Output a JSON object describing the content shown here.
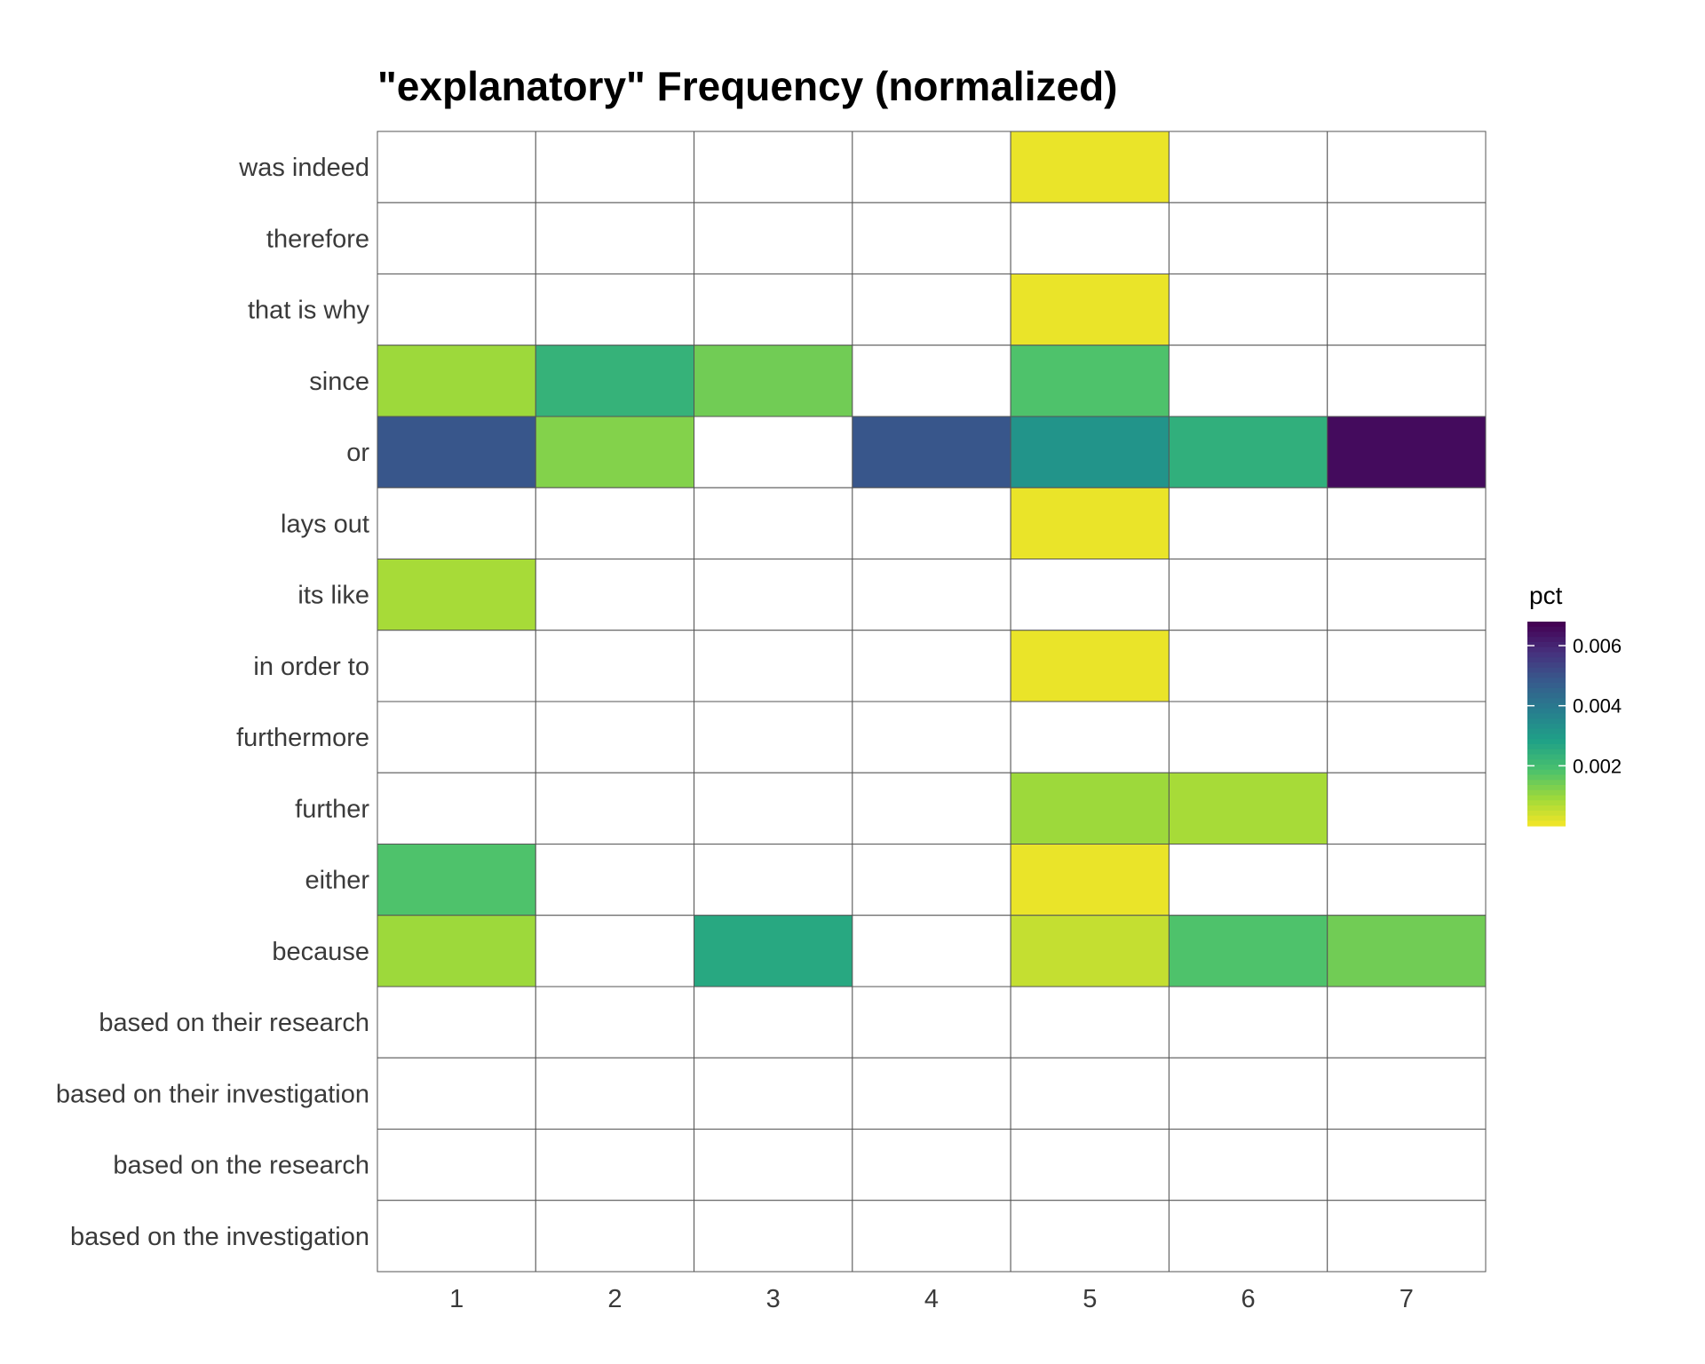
{
  "chart_data": {
    "type": "heatmap",
    "title": "\"explanatory\" Frequency (normalized)",
    "x_categories": [
      "1",
      "2",
      "3",
      "4",
      "5",
      "6",
      "7"
    ],
    "y_categories": [
      "was indeed",
      "therefore",
      "that is why",
      "since",
      "or",
      "lays out",
      "its like",
      "in order to",
      "furthermore",
      "further",
      "either",
      "because",
      "based on their research",
      "based on their investigation",
      "based on the research",
      "based on the investigation"
    ],
    "values": [
      [
        null,
        null,
        null,
        null,
        0.0002,
        null,
        null
      ],
      [
        null,
        null,
        null,
        null,
        null,
        null,
        null
      ],
      [
        null,
        null,
        null,
        null,
        0.0002,
        null,
        null
      ],
      [
        0.001,
        0.0024,
        0.0015,
        null,
        0.0019,
        null,
        null
      ],
      [
        0.005,
        0.0013,
        null,
        0.005,
        0.0033,
        0.0025,
        0.0066
      ],
      [
        null,
        null,
        null,
        null,
        0.0002,
        null,
        null
      ],
      [
        0.0009,
        null,
        null,
        null,
        null,
        null,
        null
      ],
      [
        null,
        null,
        null,
        null,
        0.0002,
        null,
        null
      ],
      [
        null,
        null,
        null,
        null,
        null,
        null,
        null
      ],
      [
        null,
        null,
        null,
        null,
        0.001,
        0.0009,
        null
      ],
      [
        0.0019,
        null,
        null,
        null,
        0.0002,
        null,
        null
      ],
      [
        0.001,
        null,
        0.0027,
        null,
        0.0006,
        0.0019,
        0.0015
      ],
      [
        null,
        null,
        null,
        null,
        null,
        null,
        null
      ],
      [
        null,
        null,
        null,
        null,
        null,
        null,
        null
      ],
      [
        null,
        null,
        null,
        null,
        null,
        null,
        null
      ],
      [
        null,
        null,
        null,
        null,
        null,
        null,
        null
      ]
    ],
    "legend": {
      "title": "pct",
      "ticks": [
        0.002,
        0.004,
        0.006
      ],
      "tick_labels": [
        "0.002",
        "0.004",
        "0.006"
      ],
      "range": [
        0.0,
        0.0068
      ],
      "position": "right",
      "colormap": "viridis (reversed)",
      "colors": [
        "#fde725",
        "#a0da39",
        "#4ac16d",
        "#1fa187",
        "#277f8e",
        "#365c8d",
        "#46327e",
        "#440154"
      ]
    },
    "grid": true
  }
}
